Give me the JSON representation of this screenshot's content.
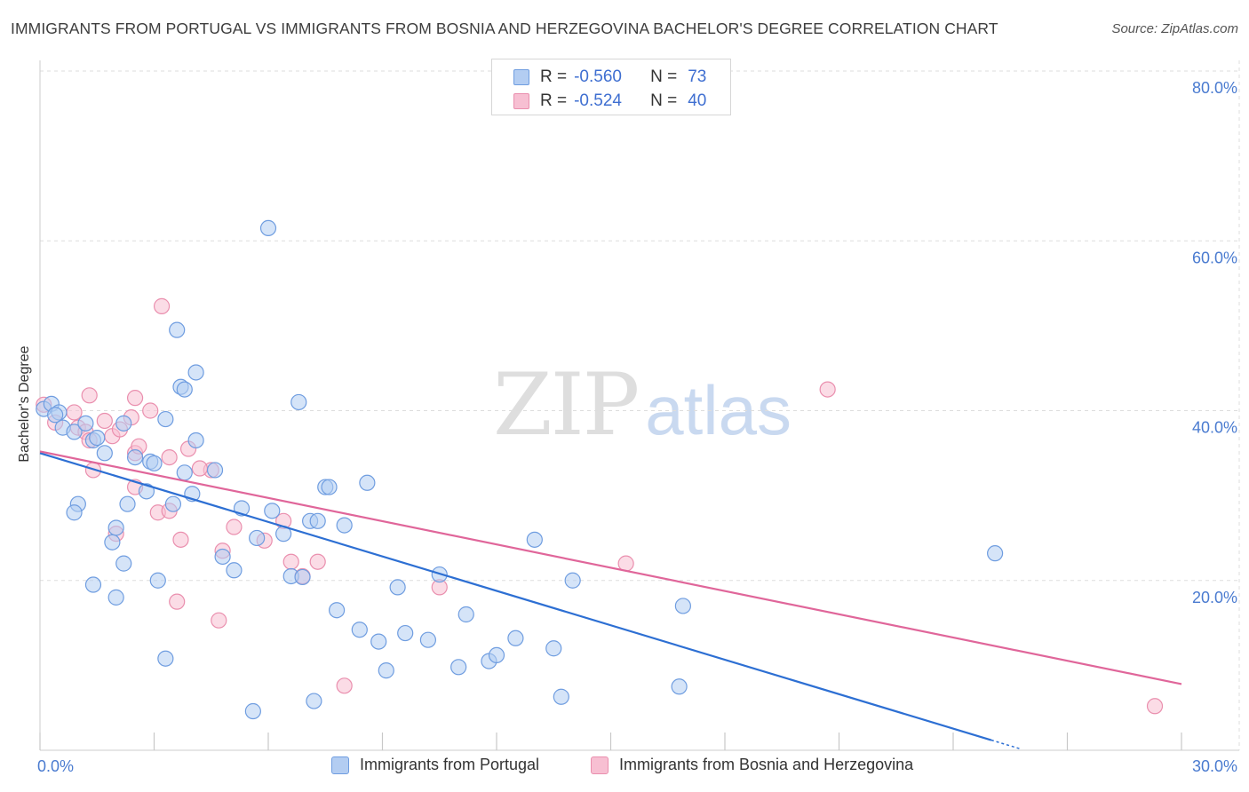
{
  "title": "IMMIGRANTS FROM PORTUGAL VS IMMIGRANTS FROM BOSNIA AND HERZEGOVINA BACHELOR'S DEGREE CORRELATION CHART",
  "source": "Source: ZipAtlas.com",
  "watermark": {
    "zip": "ZIP",
    "atlas": "atlas"
  },
  "colors": {
    "blue_fill": "#b3cdf2",
    "blue_stroke": "#6f9de0",
    "blue_line": "#2d6fd3",
    "pink_fill": "#f7bfd2",
    "pink_stroke": "#ea8fae",
    "pink_line": "#e0669a",
    "grid": "#dddddd",
    "axis_text": "#4a7bd0"
  },
  "legend": {
    "rows": [
      {
        "r_label": "R =",
        "r_value": "-0.560",
        "n_label": "N =",
        "n_value": "73"
      },
      {
        "r_label": "R =",
        "r_value": "-0.524",
        "n_label": "N =",
        "n_value": "40"
      }
    ]
  },
  "chart_data": {
    "type": "scatter",
    "title": "IMMIGRANTS FROM PORTUGAL VS IMMIGRANTS FROM BOSNIA AND HERZEGOVINA BACHELOR'S DEGREE CORRELATION CHART",
    "xlabel": "",
    "ylabel": "Bachelor's Degree",
    "xlim": [
      0,
      30
    ],
    "ylim": [
      0,
      80
    ],
    "x_ticks": [
      0,
      3,
      6,
      9,
      12,
      15,
      18,
      21,
      24,
      27,
      30
    ],
    "x_tick_labels": [
      "0.0%",
      "30.0%"
    ],
    "y_ticks": [
      20,
      40,
      60,
      80
    ],
    "y_tick_labels": [
      "20.0%",
      "40.0%",
      "60.0%",
      "80.0%"
    ],
    "legend_position": "top-center",
    "series": [
      {
        "name": "Immigrants from Portugal",
        "color": "blue",
        "trend": {
          "x0": 0,
          "y0": 35.0,
          "x1": 25.0,
          "y1": 1.2,
          "dashed_to_x": 25.8
        },
        "points": [
          [
            0.1,
            40.2
          ],
          [
            0.3,
            40.8
          ],
          [
            0.5,
            39.8
          ],
          [
            0.4,
            39.5
          ],
          [
            0.6,
            38.0
          ],
          [
            0.9,
            37.5
          ],
          [
            1.2,
            38.5
          ],
          [
            1.4,
            36.5
          ],
          [
            1.5,
            36.8
          ],
          [
            1.7,
            35.0
          ],
          [
            1.0,
            29.0
          ],
          [
            0.9,
            28.0
          ],
          [
            2.2,
            38.5
          ],
          [
            2.5,
            34.5
          ],
          [
            2.9,
            34.0
          ],
          [
            3.3,
            39.0
          ],
          [
            3.6,
            49.5
          ],
          [
            3.7,
            42.8
          ],
          [
            3.8,
            42.5
          ],
          [
            4.1,
            44.5
          ],
          [
            4.1,
            36.5
          ],
          [
            2.3,
            29.0
          ],
          [
            2.8,
            30.5
          ],
          [
            3.5,
            29.0
          ],
          [
            3.8,
            32.7
          ],
          [
            4.0,
            30.2
          ],
          [
            4.6,
            33.0
          ],
          [
            2.2,
            22.0
          ],
          [
            2.0,
            26.2
          ],
          [
            1.9,
            24.5
          ],
          [
            1.4,
            19.5
          ],
          [
            2.0,
            18.0
          ],
          [
            3.1,
            20.0
          ],
          [
            3.3,
            10.8
          ],
          [
            4.8,
            22.8
          ],
          [
            5.1,
            21.2
          ],
          [
            5.3,
            28.5
          ],
          [
            5.7,
            25.0
          ],
          [
            6.1,
            28.2
          ],
          [
            6.4,
            25.5
          ],
          [
            6.0,
            61.5
          ],
          [
            6.6,
            20.5
          ],
          [
            7.1,
            27.0
          ],
          [
            7.3,
            27.0
          ],
          [
            6.8,
            41.0
          ],
          [
            7.5,
            31.0
          ],
          [
            7.6,
            31.0
          ],
          [
            8.0,
            26.5
          ],
          [
            8.6,
            31.5
          ],
          [
            7.8,
            16.5
          ],
          [
            8.4,
            14.2
          ],
          [
            8.9,
            12.8
          ],
          [
            9.4,
            19.2
          ],
          [
            9.6,
            13.8
          ],
          [
            10.2,
            13.0
          ],
          [
            10.5,
            20.7
          ],
          [
            11.0,
            9.8
          ],
          [
            11.2,
            16.0
          ],
          [
            11.8,
            10.5
          ],
          [
            12.0,
            11.2
          ],
          [
            12.5,
            13.2
          ],
          [
            13.0,
            24.8
          ],
          [
            13.5,
            12.0
          ],
          [
            14.0,
            20.0
          ],
          [
            13.7,
            6.3
          ],
          [
            16.9,
            17.0
          ],
          [
            16.8,
            7.5
          ],
          [
            25.1,
            23.2
          ],
          [
            7.2,
            5.8
          ],
          [
            9.1,
            9.4
          ],
          [
            5.6,
            4.6
          ],
          [
            6.9,
            20.4
          ],
          [
            3.0,
            33.8
          ]
        ]
      },
      {
        "name": "Immigrants from Bosnia and Herzegovina",
        "color": "pink",
        "trend": {
          "x0": 0,
          "y0": 35.2,
          "x1": 30,
          "y1": 7.8
        },
        "points": [
          [
            0.1,
            40.7
          ],
          [
            0.4,
            38.6
          ],
          [
            0.9,
            39.8
          ],
          [
            1.0,
            38.0
          ],
          [
            1.2,
            37.5
          ],
          [
            1.3,
            36.5
          ],
          [
            1.3,
            41.8
          ],
          [
            1.7,
            38.8
          ],
          [
            1.9,
            37.0
          ],
          [
            2.1,
            37.8
          ],
          [
            2.4,
            39.2
          ],
          [
            2.5,
            35.0
          ],
          [
            2.5,
            41.5
          ],
          [
            2.9,
            40.0
          ],
          [
            3.4,
            34.5
          ],
          [
            3.9,
            35.5
          ],
          [
            3.2,
            52.3
          ],
          [
            1.4,
            33.0
          ],
          [
            2.5,
            31.0
          ],
          [
            3.1,
            28.0
          ],
          [
            3.4,
            28.2
          ],
          [
            2.0,
            25.5
          ],
          [
            3.7,
            24.8
          ],
          [
            4.5,
            33.0
          ],
          [
            4.2,
            33.2
          ],
          [
            4.8,
            23.5
          ],
          [
            5.1,
            26.3
          ],
          [
            5.9,
            24.7
          ],
          [
            6.4,
            27.0
          ],
          [
            6.6,
            22.2
          ],
          [
            6.9,
            20.5
          ],
          [
            7.3,
            22.2
          ],
          [
            3.6,
            17.5
          ],
          [
            4.7,
            15.3
          ],
          [
            8.0,
            7.6
          ],
          [
            10.5,
            19.2
          ],
          [
            15.4,
            22.0
          ],
          [
            20.7,
            42.5
          ],
          [
            29.3,
            5.2
          ],
          [
            2.6,
            35.8
          ]
        ]
      }
    ]
  },
  "bottom_legend": {
    "items": [
      {
        "label": "Immigrants from Portugal"
      },
      {
        "label": "Immigrants from Bosnia and Herzegovina"
      }
    ]
  }
}
